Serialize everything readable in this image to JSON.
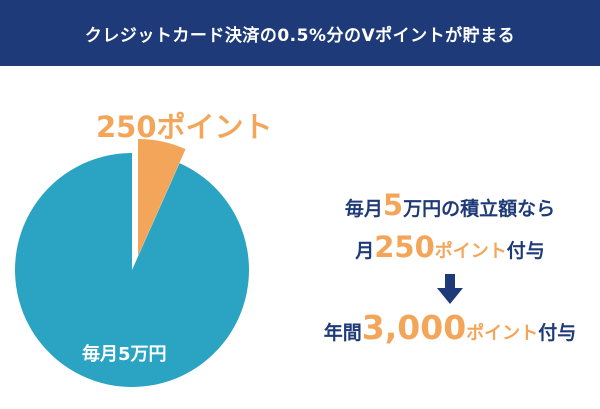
{
  "banner": {
    "title": "クレジットカード決済の0.5%分のVポイントが貯まる"
  },
  "chart_data": {
    "type": "pie",
    "slices": [
      {
        "label": "250ポイント",
        "value": 250,
        "color": "#f3a65a",
        "exploded": true
      },
      {
        "label": "毎月5万円",
        "value": 50000,
        "color": "#2ba3c2",
        "exploded": false
      }
    ],
    "title": ""
  },
  "info": {
    "line1_pre": "毎月",
    "line1_num": "5",
    "line1_post": "万円の積立額なら",
    "line2_pre": "月",
    "line2_num": "250",
    "line2_pt": "ポイント",
    "line2_post": "付与",
    "arrow_icon": "arrow-down-icon",
    "line3_pre": "年間",
    "line3_num": "3,000",
    "line3_pt": "ポイント",
    "line3_post": "付与"
  },
  "colors": {
    "navy": "#1e3a78",
    "orange": "#f3a65a",
    "teal": "#2ba3c2"
  }
}
